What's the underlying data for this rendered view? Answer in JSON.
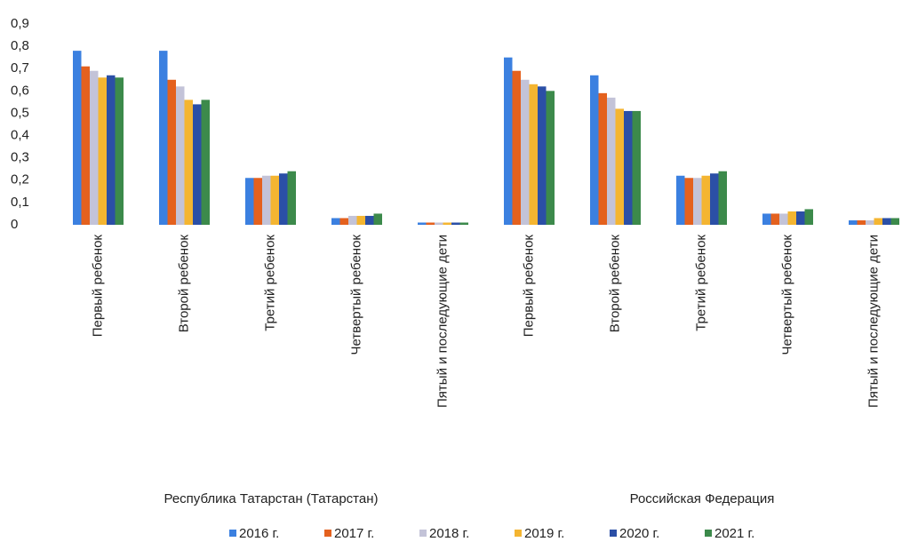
{
  "chart_data": {
    "type": "bar",
    "categories": [
      "Первый ребенок",
      "Второй ребенок",
      "Третий ребенок",
      "Четвертый ребенок",
      "Пятый и последующие дети",
      "Первый ребенок",
      "Второй ребенок",
      "Третий ребенок",
      "Четвертый ребенок",
      "Пятый и последующие дети"
    ],
    "group_labels": [
      "Республика Татарстан (Татарстан)",
      "Российская Федерация"
    ],
    "series": [
      {
        "name": "2016 г.",
        "color": "#3b80e0",
        "values": [
          0.78,
          0.78,
          0.21,
          0.03,
          0.01,
          0.75,
          0.67,
          0.22,
          0.05,
          0.02
        ]
      },
      {
        "name": "2017 г.",
        "color": "#e4611e",
        "values": [
          0.71,
          0.65,
          0.21,
          0.03,
          0.01,
          0.69,
          0.59,
          0.21,
          0.05,
          0.02
        ]
      },
      {
        "name": "2018 г.",
        "color": "#c3c3d8",
        "values": [
          0.69,
          0.62,
          0.22,
          0.04,
          0.01,
          0.65,
          0.57,
          0.21,
          0.05,
          0.02
        ]
      },
      {
        "name": "2019 г.",
        "color": "#f4b531",
        "values": [
          0.66,
          0.56,
          0.22,
          0.04,
          0.01,
          0.63,
          0.52,
          0.22,
          0.06,
          0.03
        ]
      },
      {
        "name": "2020 г.",
        "color": "#2b4fa6",
        "values": [
          0.67,
          0.54,
          0.23,
          0.04,
          0.01,
          0.62,
          0.51,
          0.23,
          0.06,
          0.03
        ]
      },
      {
        "name": "2021 г.",
        "color": "#3c8a4b",
        "values": [
          0.66,
          0.56,
          0.24,
          0.05,
          0.01,
          0.6,
          0.51,
          0.24,
          0.07,
          0.03
        ]
      }
    ],
    "ylim": [
      0,
      0.9
    ],
    "yticks": [
      0,
      {
        "value": 0.1,
        "label": "0,1"
      },
      {
        "value": 0.2,
        "label": "0,2"
      },
      {
        "value": 0.3,
        "label": "0,3"
      },
      {
        "value": 0.4,
        "label": "0,4"
      },
      {
        "value": 0.5,
        "label": "0,5"
      },
      {
        "value": 0.6,
        "label": "0,6"
      },
      {
        "value": 0.7,
        "label": "0,7"
      },
      {
        "value": 0.8,
        "label": "0,8"
      },
      {
        "value": 0.9,
        "label": "0,9"
      }
    ],
    "grid": false
  }
}
